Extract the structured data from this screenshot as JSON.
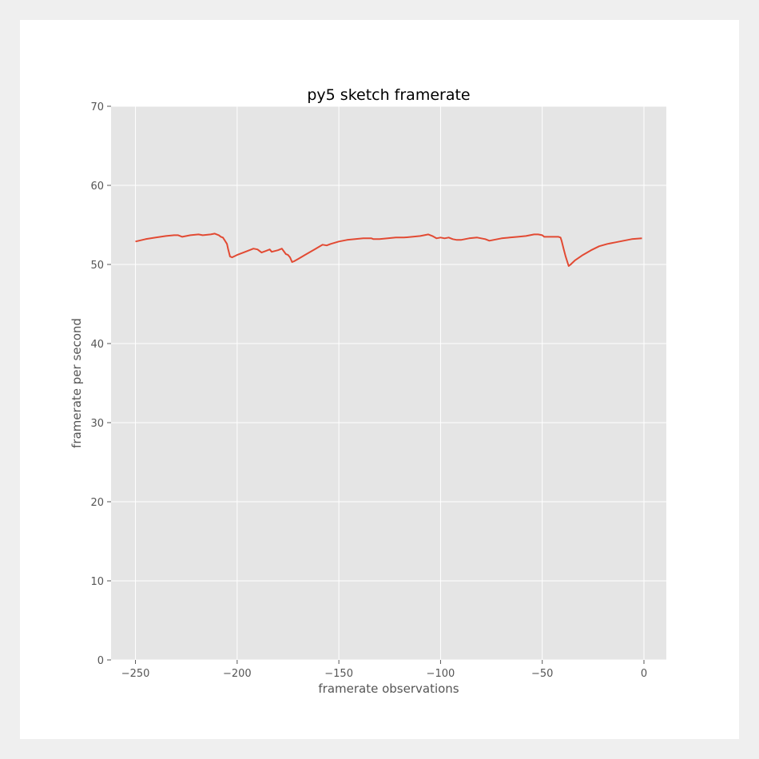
{
  "chart_data": {
    "type": "line",
    "title": "py5 sketch framerate",
    "xlabel": "framerate observations",
    "ylabel": "framerate per second",
    "xlim": [
      -262,
      11
    ],
    "ylim": [
      0,
      70
    ],
    "xticks": [
      -250,
      -200,
      -150,
      -100,
      -50,
      0
    ],
    "yticks": [
      0,
      10,
      20,
      30,
      40,
      50,
      60,
      70
    ],
    "grid": true,
    "colors": {
      "background": "#e5e5e5",
      "grid": "#ffffff",
      "line": "#e24a33"
    },
    "series": [
      {
        "x": [
          -250,
          -245,
          -240,
          -235,
          -231,
          -229,
          -227,
          -223,
          -219,
          -217,
          -213,
          -211,
          -209,
          -208,
          -207,
          -206,
          -205,
          -204.5,
          -203.5,
          -202.5,
          -200,
          -196,
          -192,
          -190,
          -188,
          -186,
          -184,
          -183,
          -180,
          -178,
          -176,
          -175,
          -174,
          -173,
          -172,
          -170,
          -166,
          -162,
          -158,
          -156,
          -154,
          -150,
          -146,
          -142,
          -138,
          -134,
          -133,
          -130,
          -126,
          -122,
          -118,
          -114,
          -110,
          -106,
          -104,
          -102,
          -100,
          -98,
          -96,
          -94,
          -92,
          -90,
          -86,
          -82,
          -80,
          -78,
          -76,
          -74,
          -72,
          -70,
          -66,
          -62,
          -58,
          -56,
          -54,
          -52,
          -50,
          -49,
          -46,
          -44,
          -42,
          -41,
          -40.5,
          -39.5,
          -38.5,
          -37,
          -36,
          -34,
          -30,
          -26,
          -22,
          -18,
          -14,
          -10,
          -6,
          -1
        ],
        "y": [
          52.9,
          53.2,
          53.4,
          53.6,
          53.7,
          53.7,
          53.5,
          53.7,
          53.8,
          53.7,
          53.8,
          53.9,
          53.7,
          53.5,
          53.4,
          53.0,
          52.6,
          52.0,
          51.0,
          50.9,
          51.2,
          51.6,
          52.0,
          51.9,
          51.5,
          51.7,
          51.9,
          51.6,
          51.8,
          52.0,
          51.3,
          51.2,
          50.9,
          50.3,
          50.4,
          50.7,
          51.3,
          51.9,
          52.5,
          52.4,
          52.6,
          52.9,
          53.1,
          53.2,
          53.3,
          53.3,
          53.2,
          53.2,
          53.3,
          53.4,
          53.4,
          53.5,
          53.6,
          53.8,
          53.6,
          53.3,
          53.4,
          53.3,
          53.4,
          53.2,
          53.1,
          53.1,
          53.3,
          53.4,
          53.3,
          53.2,
          53.0,
          53.1,
          53.2,
          53.3,
          53.4,
          53.5,
          53.6,
          53.7,
          53.8,
          53.8,
          53.7,
          53.5,
          53.5,
          53.5,
          53.5,
          53.4,
          53.0,
          52.0,
          51.0,
          49.8,
          50.0,
          50.5,
          51.2,
          51.8,
          52.3,
          52.6,
          52.8,
          53.0,
          53.2,
          53.3
        ]
      }
    ]
  }
}
